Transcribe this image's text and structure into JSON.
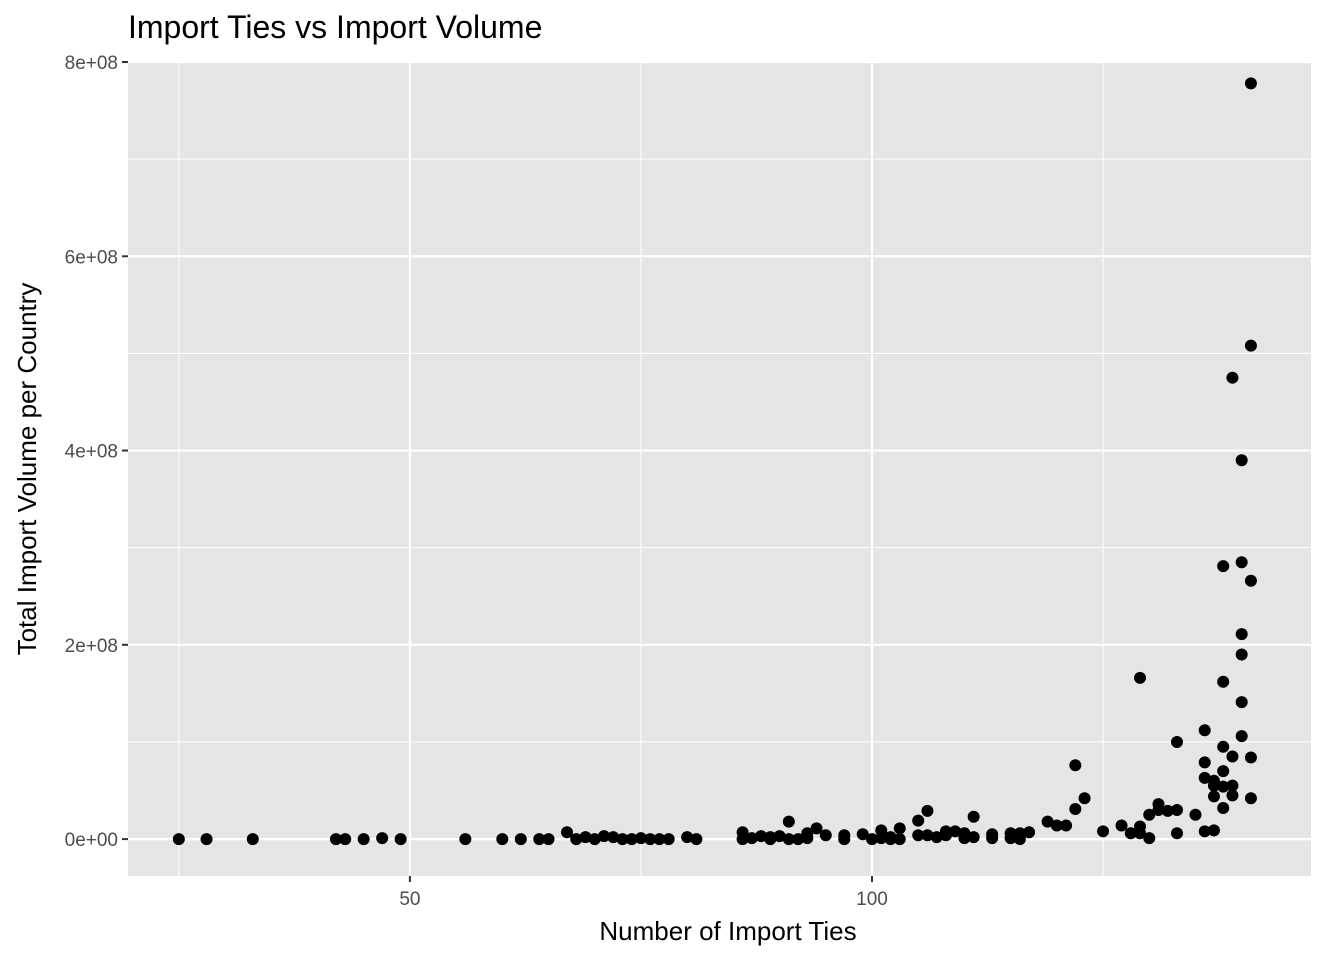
{
  "chart_data": {
    "type": "scatter",
    "title": "Import Ties vs Import Volume",
    "xlabel": "Number of Import Ties",
    "ylabel": "Total Import Volume per Country",
    "xlim": [
      19.5,
      147.5
    ],
    "ylim": [
      -38000000,
      800000000
    ],
    "x_ticks": [
      50,
      100
    ],
    "x_tick_labels": [
      "50",
      "100"
    ],
    "x_minor_ticks": [
      25,
      75,
      125
    ],
    "y_ticks": [
      0,
      200000000,
      400000000,
      600000000,
      800000000
    ],
    "y_tick_labels": [
      "0e+00",
      "2e+08",
      "4e+08",
      "6e+08",
      "8e+08"
    ],
    "y_minor_ticks": [
      100000000,
      300000000,
      500000000,
      700000000
    ],
    "grid": true,
    "colors": {
      "panel": "#e5e5e5",
      "grid": "#ffffff",
      "point": "#000000",
      "tick_text": "#4d4d4d"
    },
    "points": [
      {
        "x": 25,
        "y": 0
      },
      {
        "x": 28,
        "y": 0
      },
      {
        "x": 33,
        "y": 0
      },
      {
        "x": 42,
        "y": 0
      },
      {
        "x": 43,
        "y": 0
      },
      {
        "x": 45,
        "y": 0
      },
      {
        "x": 47,
        "y": 1000000
      },
      {
        "x": 49,
        "y": 0
      },
      {
        "x": 56,
        "y": 0
      },
      {
        "x": 60,
        "y": 0
      },
      {
        "x": 62,
        "y": 0
      },
      {
        "x": 64,
        "y": 0
      },
      {
        "x": 65,
        "y": 0
      },
      {
        "x": 67,
        "y": 7000000
      },
      {
        "x": 68,
        "y": 0
      },
      {
        "x": 69,
        "y": 2000000
      },
      {
        "x": 70,
        "y": 0
      },
      {
        "x": 71,
        "y": 3000000
      },
      {
        "x": 72,
        "y": 2000000
      },
      {
        "x": 73,
        "y": 0
      },
      {
        "x": 74,
        "y": 0
      },
      {
        "x": 75,
        "y": 1000000
      },
      {
        "x": 76,
        "y": 0
      },
      {
        "x": 77,
        "y": 0
      },
      {
        "x": 78,
        "y": 0
      },
      {
        "x": 80,
        "y": 2000000
      },
      {
        "x": 81,
        "y": 0
      },
      {
        "x": 86,
        "y": 7000000
      },
      {
        "x": 86,
        "y": 0
      },
      {
        "x": 87,
        "y": 1000000
      },
      {
        "x": 88,
        "y": 3000000
      },
      {
        "x": 89,
        "y": 2000000
      },
      {
        "x": 89,
        "y": 0
      },
      {
        "x": 90,
        "y": 3000000
      },
      {
        "x": 91,
        "y": 18000000
      },
      {
        "x": 91,
        "y": 0
      },
      {
        "x": 92,
        "y": 0
      },
      {
        "x": 93,
        "y": 6000000
      },
      {
        "x": 93,
        "y": 1000000
      },
      {
        "x": 94,
        "y": 11000000
      },
      {
        "x": 95,
        "y": 4000000
      },
      {
        "x": 97,
        "y": 4000000
      },
      {
        "x": 97,
        "y": 0
      },
      {
        "x": 99,
        "y": 5000000
      },
      {
        "x": 100,
        "y": 0
      },
      {
        "x": 101,
        "y": 9000000
      },
      {
        "x": 101,
        "y": 1000000
      },
      {
        "x": 102,
        "y": 2000000
      },
      {
        "x": 102,
        "y": 0
      },
      {
        "x": 103,
        "y": 11000000
      },
      {
        "x": 103,
        "y": 0
      },
      {
        "x": 105,
        "y": 19000000
      },
      {
        "x": 105,
        "y": 4000000
      },
      {
        "x": 106,
        "y": 29000000
      },
      {
        "x": 106,
        "y": 4000000
      },
      {
        "x": 107,
        "y": 2000000
      },
      {
        "x": 108,
        "y": 4000000
      },
      {
        "x": 108,
        "y": 8000000
      },
      {
        "x": 109,
        "y": 8000000
      },
      {
        "x": 110,
        "y": 6000000
      },
      {
        "x": 110,
        "y": 1000000
      },
      {
        "x": 111,
        "y": 23000000
      },
      {
        "x": 111,
        "y": 2000000
      },
      {
        "x": 113,
        "y": 5000000
      },
      {
        "x": 113,
        "y": 1000000
      },
      {
        "x": 115,
        "y": 6000000
      },
      {
        "x": 115,
        "y": 1000000
      },
      {
        "x": 116,
        "y": 6000000
      },
      {
        "x": 116,
        "y": 0
      },
      {
        "x": 117,
        "y": 7000000
      },
      {
        "x": 119,
        "y": 18000000
      },
      {
        "x": 120,
        "y": 14000000
      },
      {
        "x": 121,
        "y": 14000000
      },
      {
        "x": 122,
        "y": 76000000
      },
      {
        "x": 122,
        "y": 31000000
      },
      {
        "x": 123,
        "y": 42000000
      },
      {
        "x": 125,
        "y": 8000000
      },
      {
        "x": 127,
        "y": 14000000
      },
      {
        "x": 128,
        "y": 6000000
      },
      {
        "x": 129,
        "y": 166000000
      },
      {
        "x": 129,
        "y": 13000000
      },
      {
        "x": 129,
        "y": 6000000
      },
      {
        "x": 130,
        "y": 25000000
      },
      {
        "x": 130,
        "y": 1000000
      },
      {
        "x": 131,
        "y": 36000000
      },
      {
        "x": 131,
        "y": 30000000
      },
      {
        "x": 132,
        "y": 29000000
      },
      {
        "x": 133,
        "y": 100000000
      },
      {
        "x": 133,
        "y": 30000000
      },
      {
        "x": 133,
        "y": 6000000
      },
      {
        "x": 135,
        "y": 25000000
      },
      {
        "x": 136,
        "y": 112000000
      },
      {
        "x": 136,
        "y": 79000000
      },
      {
        "x": 136,
        "y": 63000000
      },
      {
        "x": 136,
        "y": 8000000
      },
      {
        "x": 137,
        "y": 60000000
      },
      {
        "x": 137,
        "y": 55000000
      },
      {
        "x": 137,
        "y": 44000000
      },
      {
        "x": 137,
        "y": 9000000
      },
      {
        "x": 138,
        "y": 281000000
      },
      {
        "x": 138,
        "y": 162000000
      },
      {
        "x": 138,
        "y": 95000000
      },
      {
        "x": 138,
        "y": 70000000
      },
      {
        "x": 138,
        "y": 54000000
      },
      {
        "x": 138,
        "y": 32000000
      },
      {
        "x": 139,
        "y": 475000000
      },
      {
        "x": 139,
        "y": 85000000
      },
      {
        "x": 139,
        "y": 55000000
      },
      {
        "x": 139,
        "y": 45000000
      },
      {
        "x": 140,
        "y": 390000000
      },
      {
        "x": 140,
        "y": 285000000
      },
      {
        "x": 140,
        "y": 211000000
      },
      {
        "x": 140,
        "y": 190000000
      },
      {
        "x": 140,
        "y": 141000000
      },
      {
        "x": 140,
        "y": 106000000
      },
      {
        "x": 141,
        "y": 778000000
      },
      {
        "x": 141,
        "y": 508000000
      },
      {
        "x": 141,
        "y": 266000000
      },
      {
        "x": 141,
        "y": 84000000
      },
      {
        "x": 141,
        "y": 42000000
      }
    ]
  }
}
